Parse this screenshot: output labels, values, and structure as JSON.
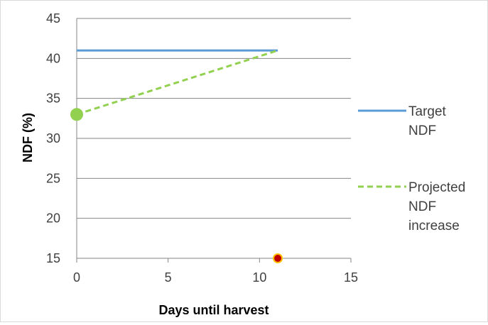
{
  "chart_data": {
    "type": "line",
    "title": "",
    "xlabel": "Days until harvest",
    "ylabel": "NDF (%)",
    "xlim": [
      0,
      15
    ],
    "ylim": [
      15,
      45
    ],
    "xticks": [
      0,
      5,
      10,
      15
    ],
    "yticks": [
      15,
      20,
      25,
      30,
      35,
      40,
      45
    ],
    "grid": "horizontal",
    "legend_position": "right",
    "series": [
      {
        "name": "Target NDF",
        "style": "solid",
        "color": "#5b9bd5",
        "x": [
          0,
          11
        ],
        "y": [
          41,
          41
        ]
      },
      {
        "name": "Projected NDF increase",
        "style": "dashed",
        "color": "#92d050",
        "x": [
          0,
          11
        ],
        "y": [
          33,
          41
        ]
      }
    ],
    "markers": [
      {
        "x": 0,
        "y": 33,
        "color": "#92d050",
        "stroke": "#92d050"
      },
      {
        "x": 11,
        "y": 15,
        "color": "#c00000",
        "stroke": "#ffc000"
      }
    ],
    "legend": [
      {
        "lines": [
          "Target",
          "NDF"
        ]
      },
      {
        "lines": [
          "Projected",
          "NDF",
          "increase"
        ]
      }
    ]
  }
}
